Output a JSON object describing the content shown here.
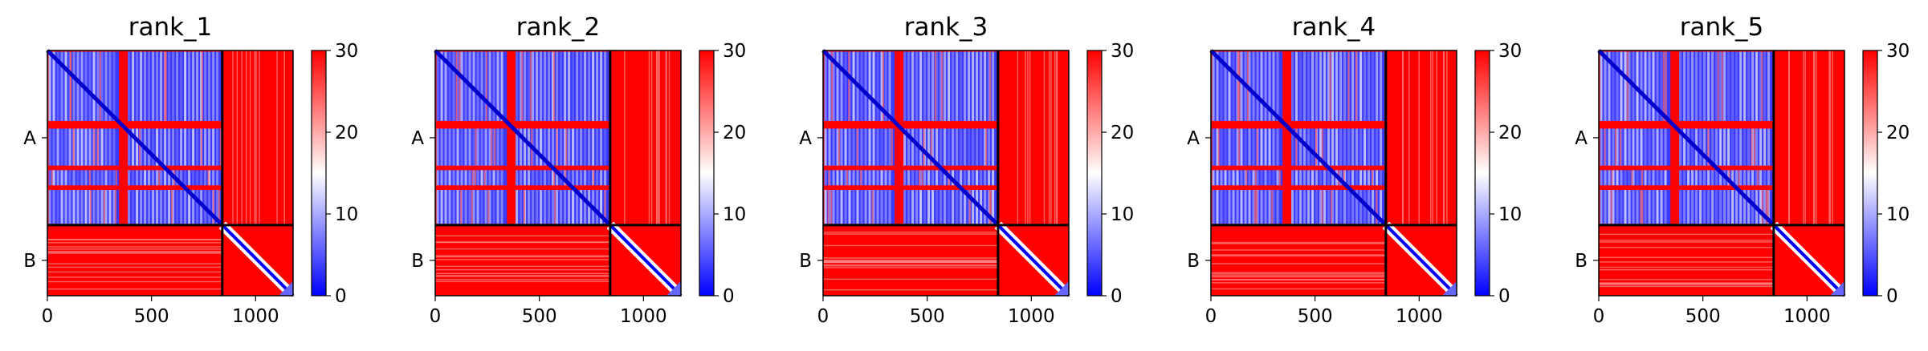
{
  "chart_data": [
    {
      "type": "heatmap",
      "title": "rank_1",
      "chain_labels": [
        "A",
        "B"
      ],
      "x_ticks": [
        0,
        500,
        1000
      ],
      "colorbar_ticks": [
        0,
        10,
        20,
        30
      ],
      "vmin": 0,
      "vmax": 30,
      "x_range": [
        0,
        1180
      ],
      "chain_boundary": 840,
      "colormap": [
        "#0000ff",
        "#ffffff",
        "#ff0000"
      ]
    },
    {
      "type": "heatmap",
      "title": "rank_2",
      "chain_labels": [
        "A",
        "B"
      ],
      "x_ticks": [
        0,
        500,
        1000
      ],
      "colorbar_ticks": [
        0,
        10,
        20,
        30
      ],
      "vmin": 0,
      "vmax": 30,
      "x_range": [
        0,
        1180
      ],
      "chain_boundary": 840,
      "colormap": [
        "#0000ff",
        "#ffffff",
        "#ff0000"
      ]
    },
    {
      "type": "heatmap",
      "title": "rank_3",
      "chain_labels": [
        "A",
        "B"
      ],
      "x_ticks": [
        0,
        500,
        1000
      ],
      "colorbar_ticks": [
        0,
        10,
        20,
        30
      ],
      "vmin": 0,
      "vmax": 30,
      "x_range": [
        0,
        1180
      ],
      "chain_boundary": 840,
      "colormap": [
        "#0000ff",
        "#ffffff",
        "#ff0000"
      ]
    },
    {
      "type": "heatmap",
      "title": "rank_4",
      "chain_labels": [
        "A",
        "B"
      ],
      "x_ticks": [
        0,
        500,
        1000
      ],
      "colorbar_ticks": [
        0,
        10,
        20,
        30
      ],
      "vmin": 0,
      "vmax": 30,
      "x_range": [
        0,
        1180
      ],
      "chain_boundary": 840,
      "colormap": [
        "#0000ff",
        "#ffffff",
        "#ff0000"
      ]
    },
    {
      "type": "heatmap",
      "title": "rank_5",
      "chain_labels": [
        "A",
        "B"
      ],
      "x_ticks": [
        0,
        500,
        1000
      ],
      "colorbar_ticks": [
        0,
        10,
        20,
        30
      ],
      "vmin": 0,
      "vmax": 30,
      "x_range": [
        0,
        1180
      ],
      "chain_boundary": 840,
      "colormap": [
        "#0000ff",
        "#ffffff",
        "#ff0000"
      ]
    }
  ]
}
